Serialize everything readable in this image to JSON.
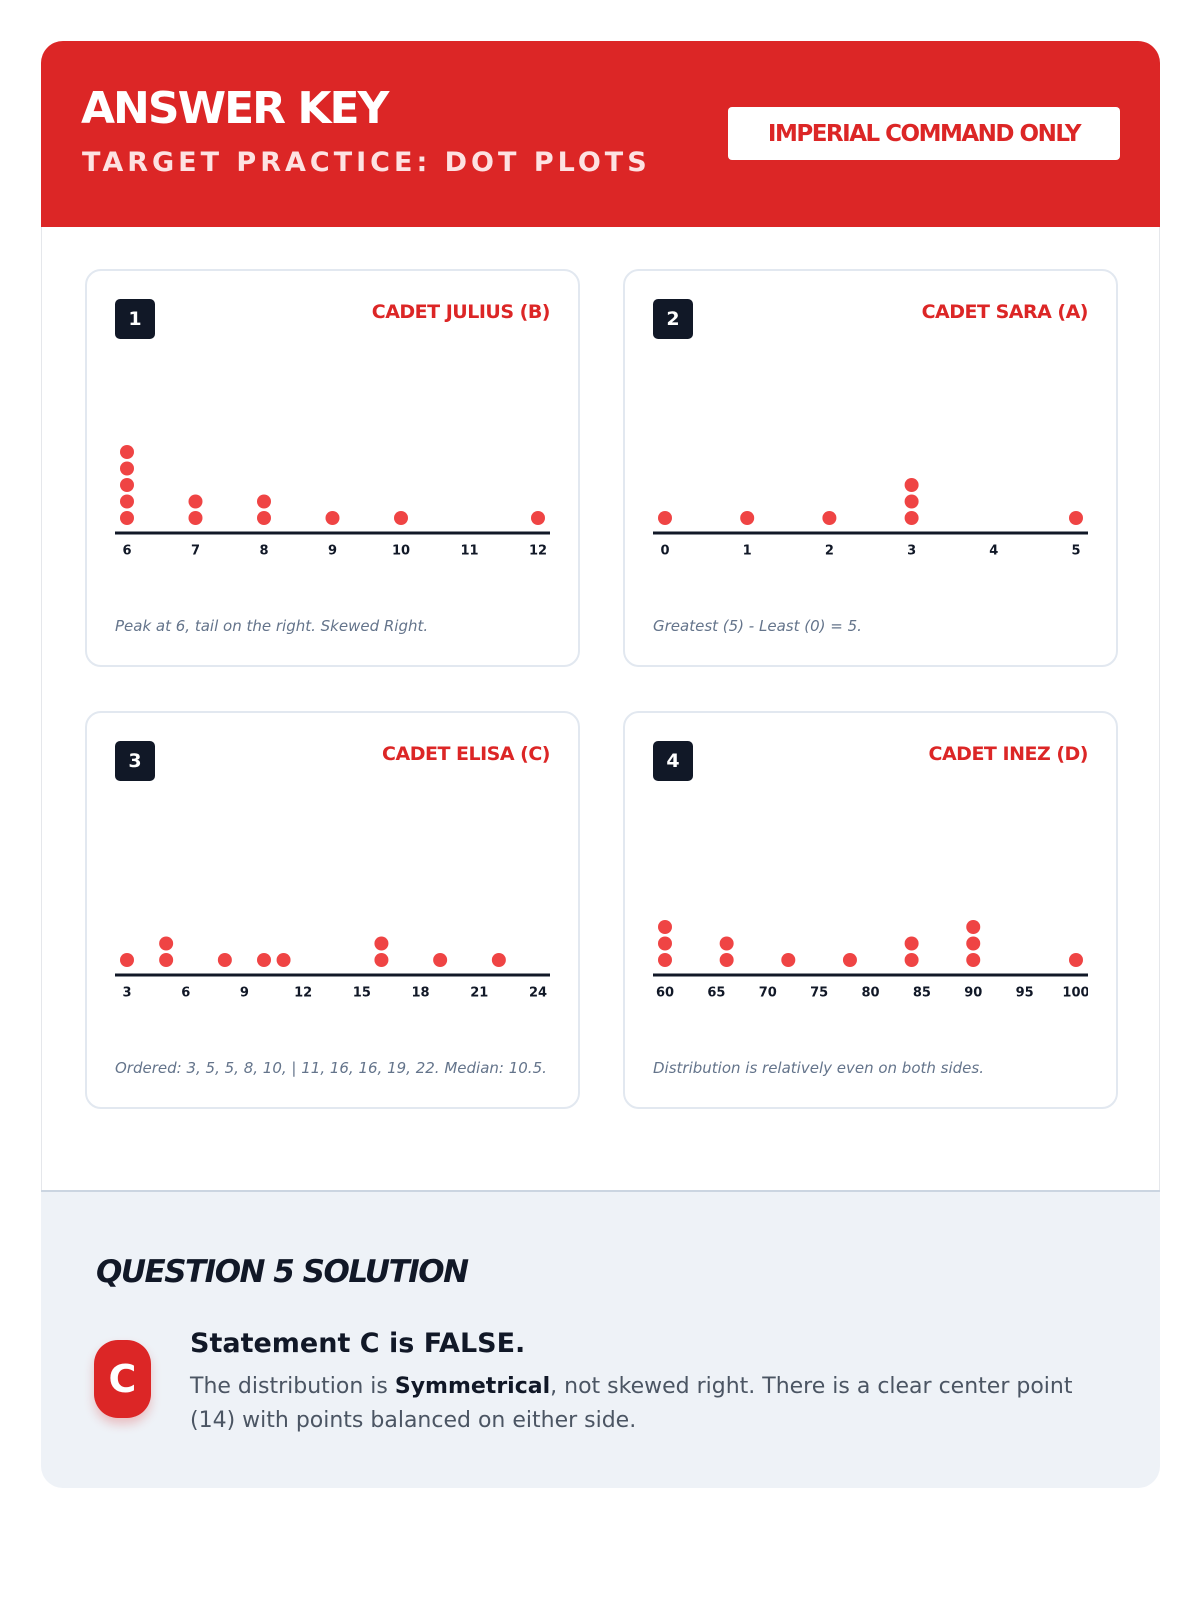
{
  "header": {
    "title": "ANSWER KEY",
    "subtitle": "TARGET PRACTICE: DOT PLOTS",
    "badge": "IMPERIAL COMMAND ONLY"
  },
  "chart_data": [
    {
      "type": "dot",
      "label": "1",
      "title": "CADET JULIUS (B)",
      "note": "Peak at 6, tail on the right. Skewed Right.",
      "values": [
        6,
        6,
        6,
        6,
        6,
        7,
        7,
        8,
        8,
        9,
        10,
        12
      ],
      "color": "#ef4444",
      "xlim": [
        6,
        12
      ],
      "xticks": [
        6,
        7,
        8,
        9,
        10,
        11,
        12
      ]
    },
    {
      "type": "dot",
      "label": "2",
      "title": "CADET SARA (A)",
      "note": "Greatest (5) - Least (0) = 5.",
      "values": [
        0,
        1,
        2,
        3,
        3,
        3,
        5
      ],
      "color": "#ef4444",
      "xlim": [
        0,
        5
      ],
      "xticks": [
        0,
        1,
        2,
        3,
        4,
        5
      ]
    },
    {
      "type": "dot",
      "label": "3",
      "title": "CADET ELISA (C)",
      "note": "Ordered: 3, 5, 5, 8, 10, | 11, 16, 16, 19, 22. Median: 10.5.",
      "values": [
        3,
        5,
        5,
        8,
        10,
        11,
        16,
        16,
        19,
        22
      ],
      "color": "#ef4444",
      "xlim": [
        3,
        24
      ],
      "xticks": [
        3,
        6,
        9,
        12,
        15,
        18,
        21,
        24
      ]
    },
    {
      "type": "dot",
      "label": "4",
      "title": "CADET INEZ (D)",
      "note": "Distribution is relatively even on both sides.",
      "values": [
        60,
        60,
        60,
        66,
        66,
        72,
        78,
        84,
        84,
        90,
        90,
        90,
        100
      ],
      "color": "#ef4444",
      "xlim": [
        60,
        100
      ],
      "xticks": [
        60,
        65,
        70,
        75,
        80,
        85,
        90,
        95,
        100
      ]
    }
  ],
  "solution": {
    "heading": "QUESTION 5 SOLUTION",
    "letter": "C",
    "statement": "Statement C is FALSE.",
    "text": [
      "The distribution is ",
      "Symmetrical",
      ", not skewed right. There is a clear center point (14) with points balanced on either side."
    ]
  }
}
